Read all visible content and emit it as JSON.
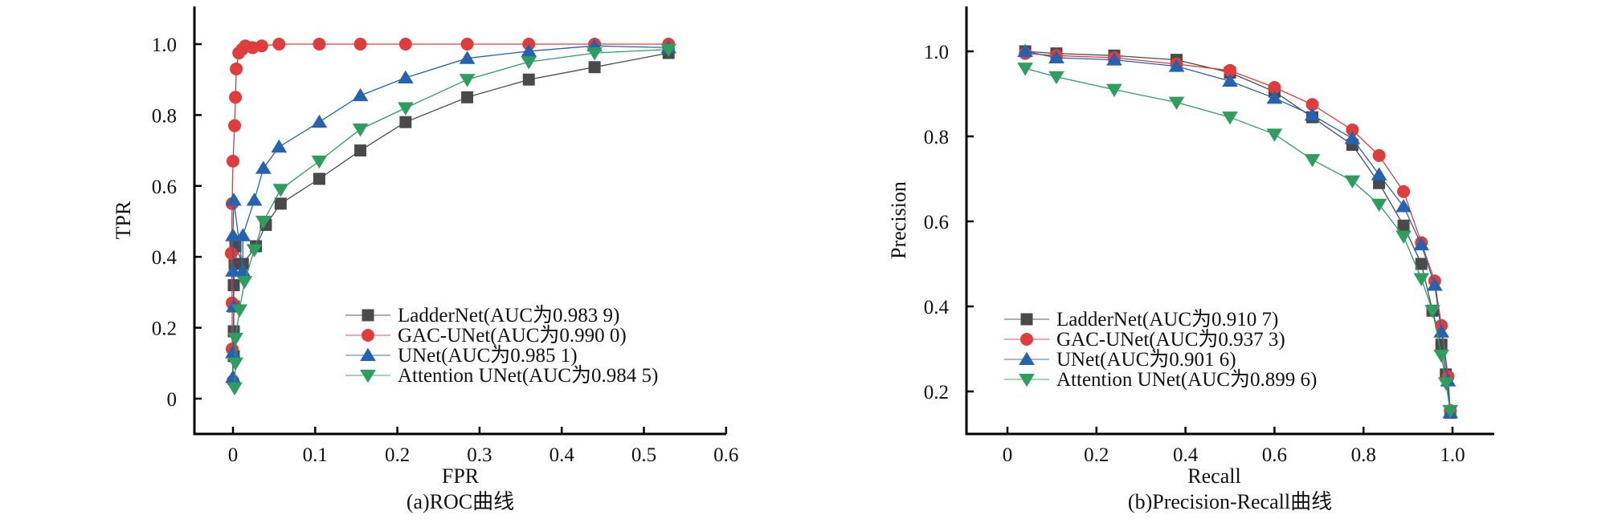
{
  "colors": {
    "LadderNet": "#4a4a4a",
    "GAC-UNet": "#e03c3c",
    "UNet": "#2563b0",
    "Attention UNet": "#2e9e5e",
    "axis": "#000000"
  },
  "chart_data": [
    {
      "type": "line",
      "title": "",
      "caption": "(a)ROC曲线",
      "xlabel": "FPR",
      "ylabel": "TPR",
      "xlim": [
        -0.047,
        0.6
      ],
      "ylim": [
        -0.1,
        1.1
      ],
      "xticks": [
        0,
        0.1,
        0.2,
        0.3,
        0.4,
        0.5,
        0.6
      ],
      "xtick_labels": [
        "0",
        "0.1",
        "0.2",
        "0.3",
        "0.4",
        "0.5",
        "0.6"
      ],
      "yticks": [
        0,
        0.2,
        0.4,
        0.6,
        0.8,
        1.0
      ],
      "ytick_labels": [
        "0",
        "0.2",
        "0.4",
        "0.6",
        "0.8",
        "1.0"
      ],
      "grid": false,
      "legend_position": "bottom-right",
      "series": [
        {
          "name": "LadderNet",
          "legend": "LadderNet(AUC为0.983 9)",
          "marker": "square",
          "x": [
            0.001,
            0.001,
            0.001,
            0.001,
            0.002,
            0.003,
            0.012,
            0.028,
            0.04,
            0.058,
            0.105,
            0.155,
            0.21,
            0.285,
            0.36,
            0.44,
            0.53
          ],
          "y": [
            0.12,
            0.19,
            0.26,
            0.32,
            0.38,
            0.43,
            0.38,
            0.43,
            0.49,
            0.55,
            0.62,
            0.7,
            0.78,
            0.85,
            0.9,
            0.935,
            0.975
          ]
        },
        {
          "name": "GAC-UNet",
          "legend": "GAC-UNet(AUC为0.990 0)",
          "marker": "circle",
          "x": [
            0.0,
            -0.001,
            -0.001,
            -0.002,
            -0.001,
            0.0,
            0.002,
            0.003,
            0.004,
            0.007,
            0.011,
            0.015,
            0.024,
            0.035,
            0.056,
            0.105,
            0.155,
            0.21,
            0.285,
            0.36,
            0.44,
            0.53
          ],
          "y": [
            0.05,
            0.14,
            0.27,
            0.41,
            0.55,
            0.67,
            0.77,
            0.85,
            0.93,
            0.975,
            0.985,
            0.995,
            0.99,
            0.995,
            1.0,
            1.0,
            1.0,
            1.0,
            1.0,
            1.0,
            1.0,
            1.0
          ]
        },
        {
          "name": "UNet",
          "legend": "UNet(AUC为0.985 1)",
          "marker": "triangle-up",
          "x": [
            0.0,
            0.0,
            0.001,
            0.0,
            0.0,
            0.001,
            0.012,
            0.012,
            0.026,
            0.037,
            0.056,
            0.105,
            0.155,
            0.21,
            0.285,
            0.36,
            0.44,
            0.53
          ],
          "y": [
            0.06,
            0.13,
            0.26,
            0.36,
            0.46,
            0.56,
            0.36,
            0.46,
            0.56,
            0.65,
            0.71,
            0.78,
            0.855,
            0.905,
            0.96,
            0.98,
            0.995,
            0.99
          ]
        },
        {
          "name": "Attention UNet",
          "legend": "Attention UNet(AUC为0.984 5)",
          "marker": "triangle-down",
          "x": [
            0.002,
            0.003,
            0.003,
            0.008,
            0.014,
            0.026,
            0.037,
            0.058,
            0.105,
            0.155,
            0.21,
            0.285,
            0.36,
            0.44,
            0.53
          ],
          "y": [
            0.03,
            0.1,
            0.17,
            0.25,
            0.33,
            0.42,
            0.5,
            0.59,
            0.67,
            0.76,
            0.82,
            0.9,
            0.95,
            0.975,
            0.985
          ]
        }
      ]
    },
    {
      "type": "line",
      "title": "",
      "caption": "(b)Precision-Recall曲线",
      "xlabel": "Recall",
      "ylabel": "Precision",
      "xlim": [
        -0.1,
        1.095
      ],
      "ylim": [
        0.1,
        1.1
      ],
      "xticks": [
        0,
        0.2,
        0.4,
        0.6,
        0.8,
        1.0
      ],
      "xtick_labels": [
        "0",
        "0.2",
        "0.4",
        "0.6",
        "0.8",
        "1.0"
      ],
      "yticks": [
        0.2,
        0.4,
        0.6,
        0.8,
        1.0
      ],
      "ytick_labels": [
        "0.2",
        "0.4",
        "0.6",
        "0.8",
        "1.0"
      ],
      "grid": false,
      "legend_position": "bottom-left",
      "series": [
        {
          "name": "LadderNet",
          "legend": "LadderNet(AUC为0.910 7)",
          "marker": "square",
          "x": [
            0.04,
            0.11,
            0.24,
            0.38,
            0.5,
            0.6,
            0.685,
            0.775,
            0.835,
            0.89,
            0.93,
            0.955,
            0.975,
            0.985,
            0.995
          ],
          "y": [
            1.0,
            0.995,
            0.99,
            0.98,
            0.95,
            0.905,
            0.845,
            0.78,
            0.69,
            0.59,
            0.5,
            0.39,
            0.31,
            0.24,
            0.15
          ]
        },
        {
          "name": "GAC-UNet",
          "legend": "GAC-UNet(AUC为0.937 3)",
          "marker": "circle",
          "x": [
            0.04,
            0.11,
            0.24,
            0.38,
            0.5,
            0.6,
            0.685,
            0.775,
            0.835,
            0.89,
            0.93,
            0.96,
            0.975,
            0.99,
            0.995
          ],
          "y": [
            0.995,
            0.99,
            0.985,
            0.97,
            0.955,
            0.915,
            0.875,
            0.815,
            0.755,
            0.67,
            0.55,
            0.46,
            0.355,
            0.235,
            0.155
          ]
        },
        {
          "name": "UNet",
          "legend": "UNet(AUC为0.901 6)",
          "marker": "triangle-up",
          "x": [
            0.04,
            0.11,
            0.24,
            0.38,
            0.5,
            0.6,
            0.685,
            0.775,
            0.835,
            0.89,
            0.93,
            0.96,
            0.975,
            0.99,
            0.995
          ],
          "y": [
            1.0,
            0.985,
            0.98,
            0.965,
            0.93,
            0.89,
            0.85,
            0.795,
            0.71,
            0.635,
            0.545,
            0.45,
            0.34,
            0.225,
            0.15
          ]
        },
        {
          "name": "Attention UNet",
          "legend": "Attention UNet(AUC为0.899 6)",
          "marker": "triangle-down",
          "x": [
            0.04,
            0.11,
            0.24,
            0.38,
            0.5,
            0.6,
            0.685,
            0.775,
            0.835,
            0.89,
            0.93,
            0.955,
            0.975,
            0.985,
            0.995
          ],
          "y": [
            0.96,
            0.94,
            0.91,
            0.88,
            0.845,
            0.805,
            0.745,
            0.695,
            0.64,
            0.565,
            0.465,
            0.39,
            0.285,
            0.22,
            0.155
          ]
        }
      ]
    }
  ]
}
